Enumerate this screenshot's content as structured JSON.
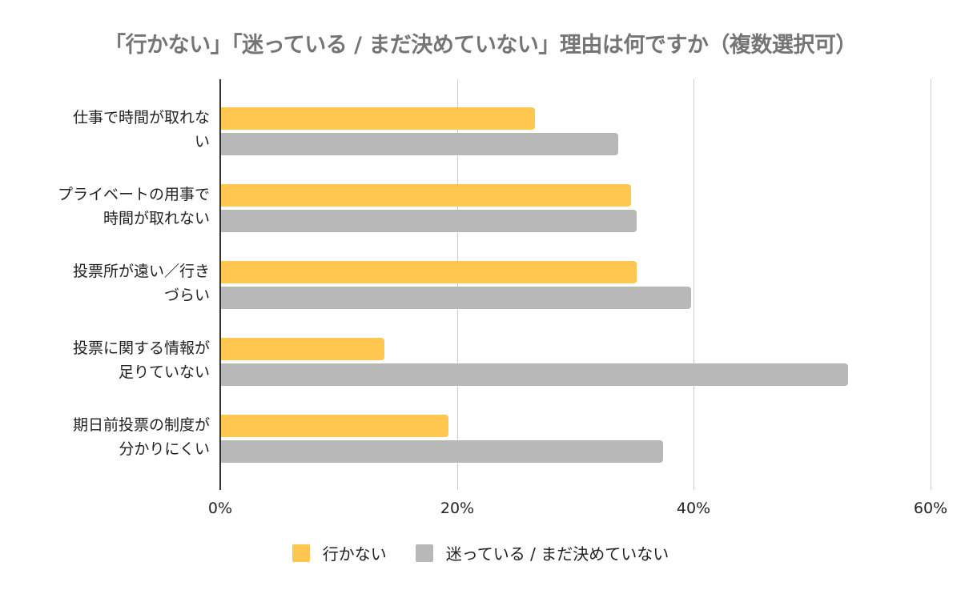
{
  "chart_data": {
    "type": "bar",
    "orientation": "horizontal",
    "title": "「行かない」「迷っている / まだ決めていない」理由は何ですか（複数選択可）",
    "xlabel": "",
    "ylabel": "",
    "categories": [
      [
        "仕事で時間が取れな",
        "い"
      ],
      [
        "プライベートの用事で",
        "時間が取れない"
      ],
      [
        "投票所が遠い／行き",
        "づらい"
      ],
      [
        "投票に関する情報が",
        "足りていない"
      ],
      [
        "期日前投票の制度が",
        "分かりにくい"
      ]
    ],
    "series": [
      {
        "name": "行かない",
        "color": "#FFC750",
        "values": [
          26.6,
          34.7,
          35.2,
          13.9,
          19.3
        ]
      },
      {
        "name": "迷っている / まだ決めていない",
        "color": "#B8B8B8",
        "values": [
          33.6,
          35.2,
          39.8,
          53.0,
          37.4
        ]
      }
    ],
    "xlim": [
      0,
      60
    ],
    "x_ticks": [
      "0%",
      "20%",
      "40%",
      "60%"
    ],
    "grid": true,
    "legend_position": "bottom"
  }
}
